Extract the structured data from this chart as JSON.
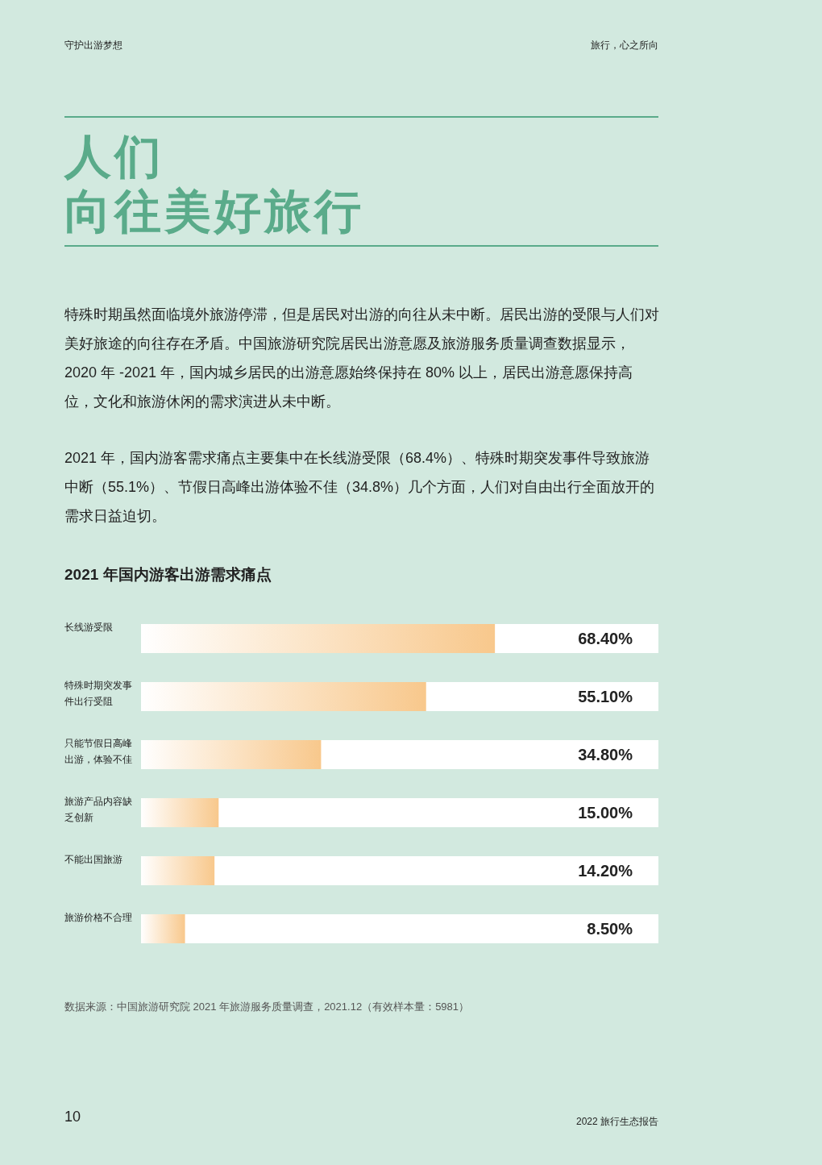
{
  "chart_data": {
    "type": "bar",
    "orientation": "horizontal",
    "title": "2021 年国内游客出游需求痛点",
    "categories": [
      "长线游受限",
      "特殊时期突发事件出行受阻",
      "只能节假日高峰出游，体验不佳",
      "旅游产品内容缺乏创新",
      "不能出国旅游",
      "旅游价格不合理"
    ],
    "values": [
      68.4,
      55.1,
      34.8,
      15.0,
      14.2,
      8.5
    ],
    "value_labels": [
      "68.40%",
      "55.10%",
      "34.80%",
      "15.00%",
      "14.20%",
      "8.50%"
    ],
    "color": "#f8c88c",
    "xlim": [
      0,
      100
    ],
    "annotations": [
      "守护出游梦想",
      "旅行，心之所向",
      "人们",
      "向往美好旅行",
      "特殊时期虽然面临境外旅游停滞，但是居民对出游的向往从未中断。居民出游的受限与人们对美好旅途的向往存在矛盾。中国旅游研究院居民出游意愿及旅游服务质量调查数据显示，2020 年 -2021 年，国内城乡居民的出游意愿始终保持在 80% 以上，居民出游意愿保持高位，文化和旅游休闲的需求演进从未中断。",
      "2021 年，国内游客需求痛点主要集中在长线游受限（68.4%）、特殊时期突发事件导致旅游中断（55.1%）、节假日高峰出游体验不佳（34.8%）几个方面，人们对自由出行全面放开的需求日益迫切。",
      "数据来源：中国旅游研究院 2021 年旅游服务质量调查，2021.12（有效样本量：5981）",
      "10",
      "2022 旅行生态报告"
    ]
  }
}
